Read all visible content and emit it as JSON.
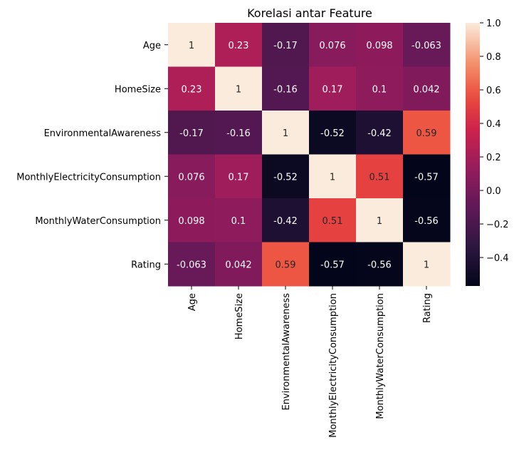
{
  "chart_data": {
    "type": "heatmap",
    "title": "Korelasi antar Feature",
    "xlabel": "",
    "ylabel": "",
    "rows": [
      "Age",
      "HomeSize",
      "EnvironmentalAwareness",
      "MonthlyElectricityConsumption",
      "MonthlyWaterConsumption",
      "Rating"
    ],
    "columns": [
      "Age",
      "HomeSize",
      "EnvironmentalAwareness",
      "MonthlyElectricityConsumption",
      "MonthlyWaterConsumption",
      "Rating"
    ],
    "values": [
      [
        1,
        0.23,
        -0.17,
        0.076,
        0.098,
        -0.063
      ],
      [
        0.23,
        1,
        -0.16,
        0.17,
        0.1,
        0.042
      ],
      [
        -0.17,
        -0.16,
        1,
        -0.52,
        -0.42,
        0.59
      ],
      [
        0.076,
        0.17,
        -0.52,
        1,
        0.51,
        -0.57
      ],
      [
        0.098,
        0.1,
        -0.42,
        0.51,
        1,
        -0.56
      ],
      [
        -0.063,
        0.042,
        0.59,
        -0.57,
        -0.56,
        1
      ]
    ],
    "cell_labels": [
      [
        "1",
        "0.23",
        "-0.17",
        "0.076",
        "0.098",
        "-0.063"
      ],
      [
        "0.23",
        "1",
        "-0.16",
        "0.17",
        "0.1",
        "0.042"
      ],
      [
        "-0.17",
        "-0.16",
        "1",
        "-0.52",
        "-0.42",
        "0.59"
      ],
      [
        "0.076",
        "0.17",
        "-0.52",
        "1",
        "0.51",
        "-0.57"
      ],
      [
        "0.098",
        "0.1",
        "-0.42",
        "0.51",
        "1",
        "-0.56"
      ],
      [
        "-0.063",
        "0.042",
        "0.59",
        "-0.57",
        "-0.56",
        "1"
      ]
    ],
    "colorbar": {
      "range": [
        -0.57,
        1
      ],
      "ticks": [
        1.0,
        0.8,
        0.6,
        0.4,
        0.2,
        0.0,
        -0.2,
        -0.4
      ],
      "tick_labels": [
        "1.0",
        "0.8",
        "0.6",
        "0.4",
        "0.2",
        "0.0",
        "−0.2",
        "−0.4"
      ],
      "colormap": "rocket"
    },
    "grid": false
  }
}
